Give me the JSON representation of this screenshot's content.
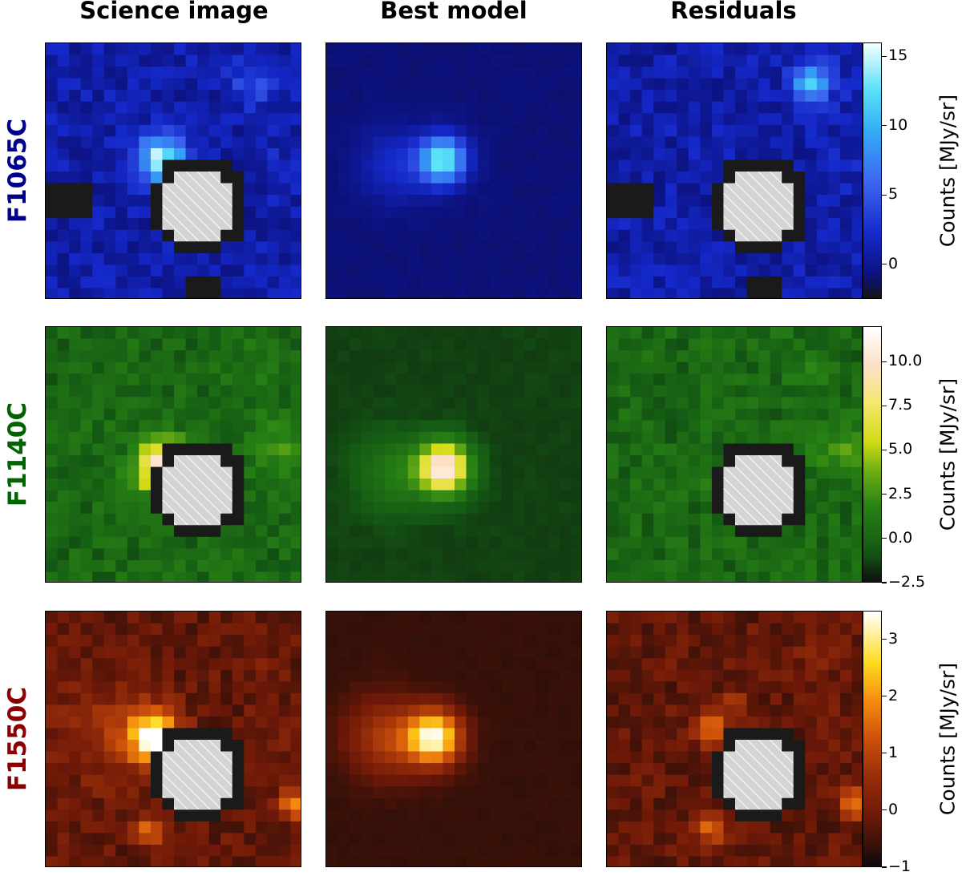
{
  "column_titles": [
    "Science image",
    "Best model",
    "Residuals"
  ],
  "chart_data": [
    {
      "type": "heatmap",
      "filter": "F1065C",
      "label_color": "#00008b",
      "colormap": "blue",
      "colorbar": {
        "label": "Counts [MJy/sr]",
        "range": [
          -2.5,
          16
        ],
        "ticks": [
          0,
          5,
          10,
          15
        ],
        "tick_labels": [
          "0",
          "5",
          "10",
          "15"
        ]
      },
      "panels": [
        "Science image",
        "Best model",
        "Residuals"
      ]
    },
    {
      "type": "heatmap",
      "filter": "F1140C",
      "label_color": "#006400",
      "colormap": "green",
      "colorbar": {
        "label": "Counts [MJy/sr]",
        "range": [
          -2.5,
          12
        ],
        "ticks": [
          -2.5,
          0,
          2.5,
          5,
          7.5,
          10
        ],
        "tick_labels": [
          "−2.5",
          "0.0",
          "2.5",
          "5.0",
          "7.5",
          "10.0"
        ]
      },
      "panels": [
        "Science image",
        "Best model",
        "Residuals"
      ]
    },
    {
      "type": "heatmap",
      "filter": "F1550C",
      "label_color": "#8b0000",
      "colormap": "red",
      "colorbar": {
        "label": "Counts [MJy/sr]",
        "range": [
          -1,
          3.5
        ],
        "ticks": [
          -1,
          0,
          1,
          2,
          3
        ],
        "tick_labels": [
          "−1",
          "0",
          "1",
          "2",
          "3"
        ]
      },
      "panels": [
        "Science image",
        "Best model",
        "Residuals"
      ]
    }
  ]
}
